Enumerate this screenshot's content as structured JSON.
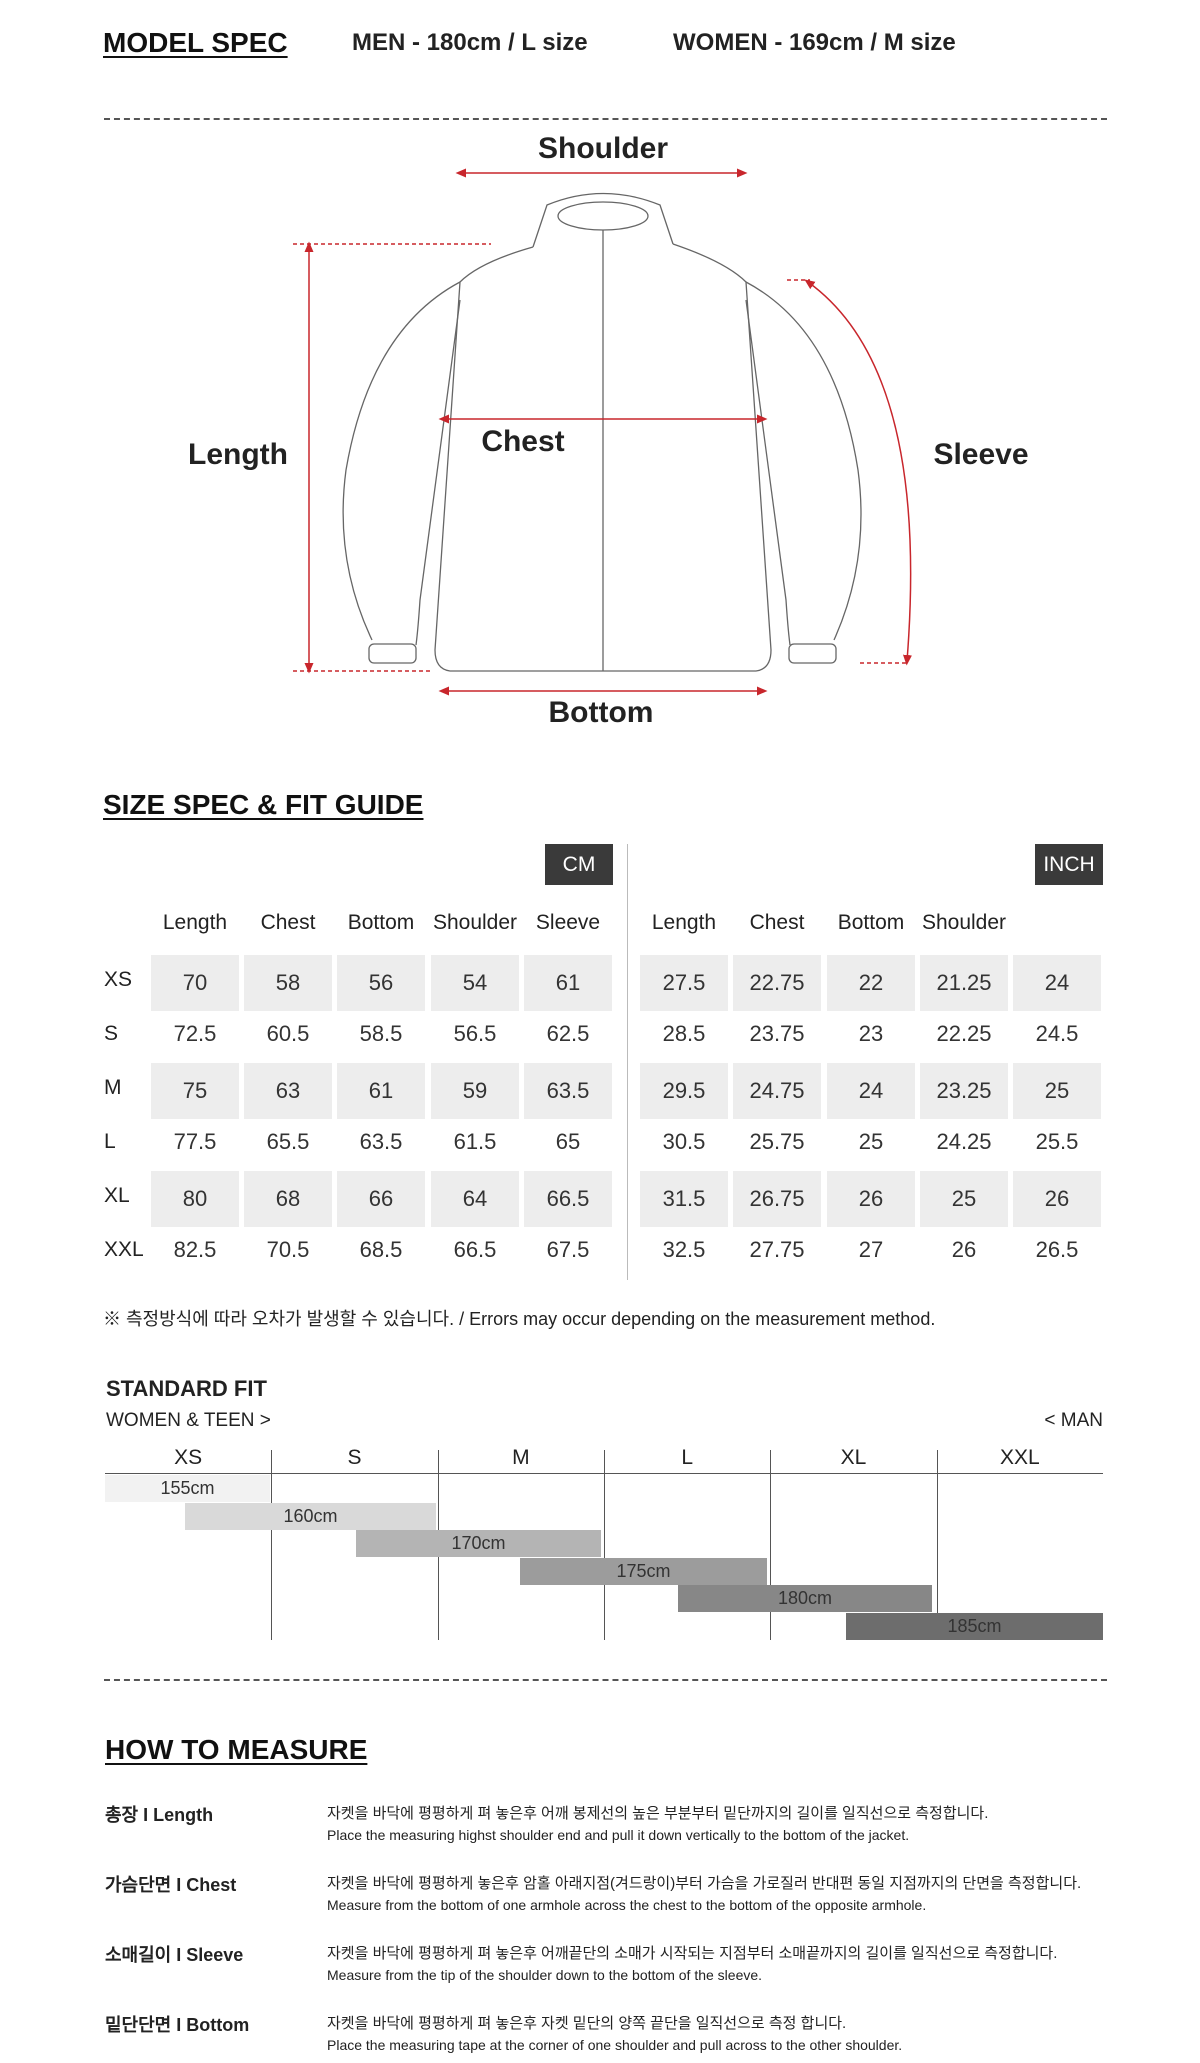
{
  "model_spec": {
    "title": "MODEL SPEC",
    "men": "MEN - 180cm / L size",
    "women": "WOMEN - 169cm / M size"
  },
  "diagram": {
    "shoulder": "Shoulder",
    "length": "Length",
    "chest": "Chest",
    "sleeve": "Sleeve",
    "bottom": "Bottom",
    "arrow_color": "#c8262c"
  },
  "size_spec": {
    "title": "SIZE SPEC  &  FIT GUIDE",
    "cm_label": "CM",
    "inch_label": "INCH",
    "cm_headers": [
      "Length",
      "Chest",
      "Bottom",
      "Shoulder",
      "Sleeve"
    ],
    "inch_headers": [
      "Length",
      "Chest",
      "Bottom",
      "Shoulder",
      ""
    ],
    "rows": [
      {
        "size": "XS",
        "cm": [
          "70",
          "58",
          "56",
          "54",
          "61"
        ],
        "inch": [
          "27.5",
          "22.75",
          "22",
          "21.25",
          "24"
        ]
      },
      {
        "size": "S",
        "cm": [
          "72.5",
          "60.5",
          "58.5",
          "56.5",
          "62.5"
        ],
        "inch": [
          "28.5",
          "23.75",
          "23",
          "22.25",
          "24.5"
        ]
      },
      {
        "size": "M",
        "cm": [
          "75",
          "63",
          "61",
          "59",
          "63.5"
        ],
        "inch": [
          "29.5",
          "24.75",
          "24",
          "23.25",
          "25"
        ]
      },
      {
        "size": "L",
        "cm": [
          "77.5",
          "65.5",
          "63.5",
          "61.5",
          "65"
        ],
        "inch": [
          "30.5",
          "25.75",
          "25",
          "24.25",
          "25.5"
        ]
      },
      {
        "size": "XL",
        "cm": [
          "80",
          "68",
          "66",
          "64",
          "66.5"
        ],
        "inch": [
          "31.5",
          "26.75",
          "26",
          "25",
          "26"
        ]
      },
      {
        "size": "XXL",
        "cm": [
          "82.5",
          "70.5",
          "68.5",
          "66.5",
          "67.5"
        ],
        "inch": [
          "32.5",
          "27.75",
          "27",
          "26",
          "26.5"
        ]
      }
    ],
    "note": "※ 측정방식에 따라 오차가 발생할 수 있습니다. / Errors may occur depending on the measurement method."
  },
  "standard_fit": {
    "title": "STANDARD FIT",
    "left": "WOMEN & TEEN >",
    "right": "< MAN",
    "sizes": [
      "XS",
      "S",
      "M",
      "L",
      "XL",
      "XXL"
    ],
    "heights": [
      {
        "label": "155cm",
        "color": "#f2f2f2"
      },
      {
        "label": "160cm",
        "color": "#d9d9d9"
      },
      {
        "label": "170cm",
        "color": "#b4b4b4"
      },
      {
        "label": "175cm",
        "color": "#9c9c9c"
      },
      {
        "label": "180cm",
        "color": "#878787"
      },
      {
        "label": "185cm",
        "color": "#6d6d6d"
      }
    ]
  },
  "how_to_measure": {
    "title": "HOW TO MEASURE",
    "items": [
      {
        "label": "총장 I Length",
        "ko": "자켓을 바닥에 평평하게 펴 놓은후 어깨 봉제선의 높은 부분부터 밑단까지의 길이를 일직선으로 측정합니다.",
        "en": "Place the measuring highst shoulder end and pull it down vertically to the bottom of the jacket."
      },
      {
        "label": "가슴단면 I Chest",
        "ko": "자켓을 바닥에 평평하게 놓은후 암홀 아래지점(겨드랑이)부터 가슴을 가로질러 반대편 동일 지점까지의 단면을 측정합니다.",
        "en": "Measure from the bottom of one armhole across the chest to the bottom of the opposite armhole."
      },
      {
        "label": "소매길이 I Sleeve",
        "ko": "자켓을 바닥에 평평하게 펴 놓은후 어깨끝단의 소매가 시작되는 지점부터 소매끝까지의 길이를 일직선으로 측정합니다.",
        "en": "Measure from the tip of the shoulder down to the bottom of the sleeve."
      },
      {
        "label": "밑단단면 I Bottom",
        "ko": "자켓을 바닥에 평평하게 펴 놓은후 자켓 밑단의 양쪽 끝단을 일직선으로 측정 합니다.",
        "en": "Place the measuring tape at the corner of one shoulder and pull across to the other shoulder."
      }
    ]
  }
}
